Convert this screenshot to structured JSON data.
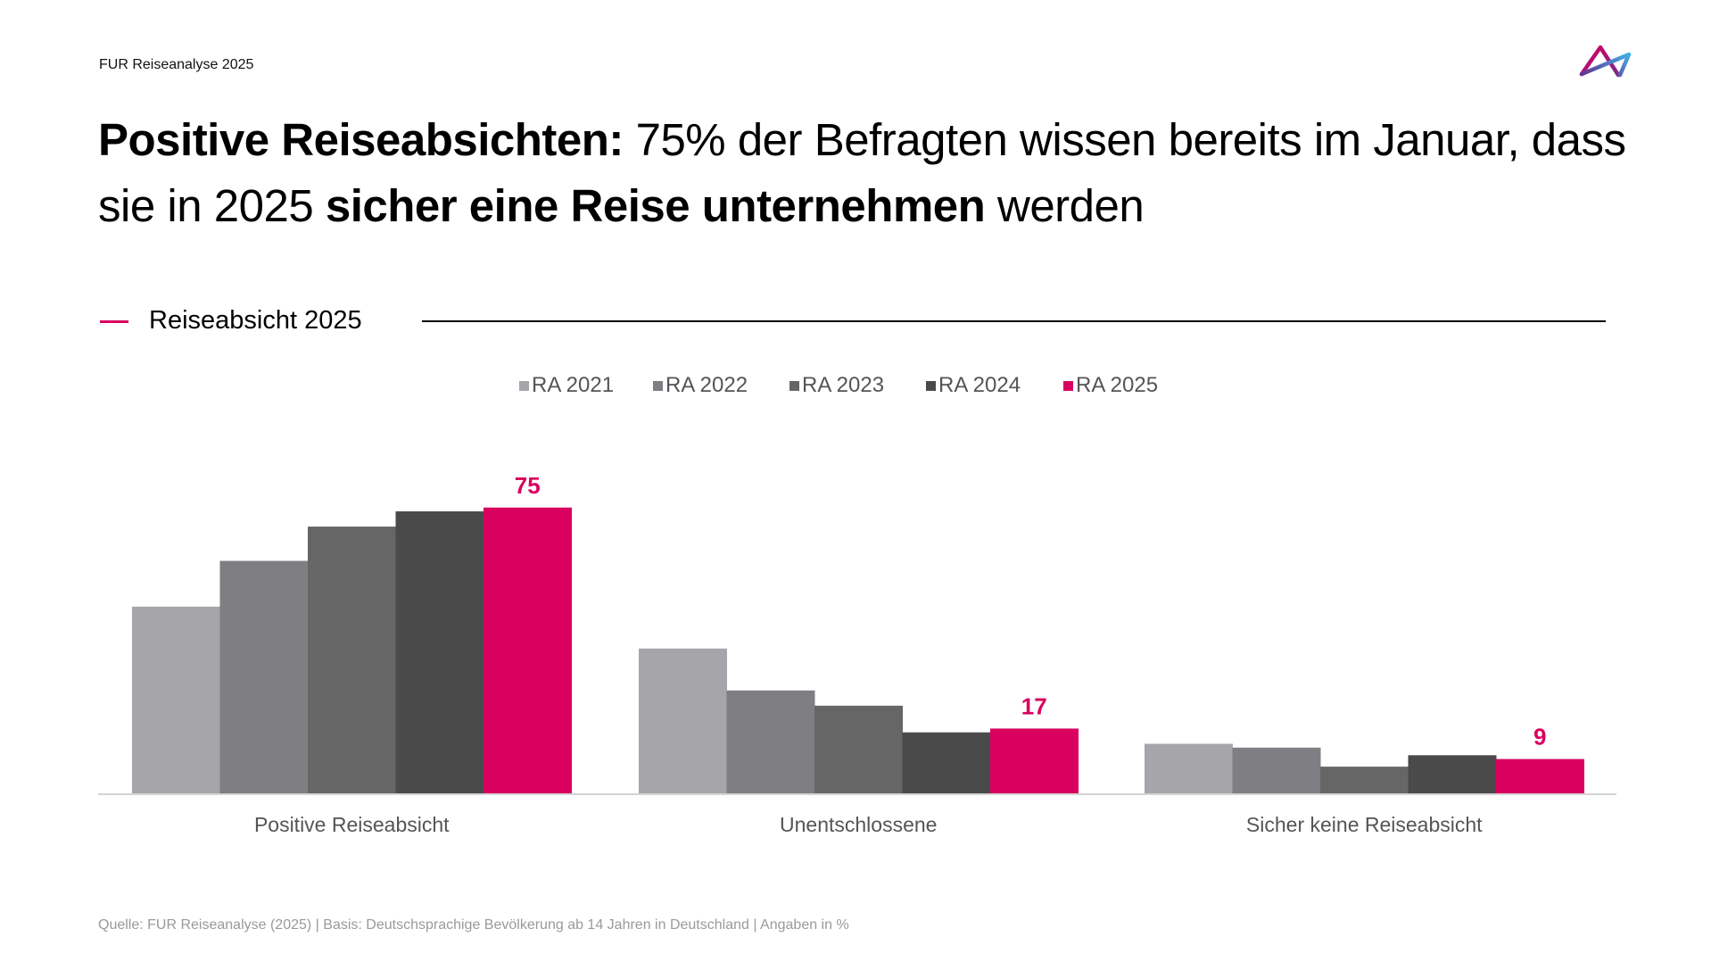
{
  "header": {
    "top_label": "FUR Reiseanalyse 2025",
    "logo": "fur-triangle-logo-icon"
  },
  "headline": {
    "part1_bold": "Positive Reiseabsichten:",
    "part2": " 75% der Befragten wissen bereits im Januar, dass sie in 2025 ",
    "part3_bold": "sicher eine Reise unternehmen",
    "part4": " werden"
  },
  "section": {
    "title": "Reiseabsicht 2025"
  },
  "colors": {
    "accent": "#d9005f",
    "ra2021": "#a6a5aa",
    "ra2022": "#7f7e83",
    "ra2023": "#666666",
    "ra2024": "#4a4a4a",
    "ra2025": "#d9005f"
  },
  "chart_data": {
    "type": "bar",
    "title": "Reiseabsicht 2025",
    "xlabel": "",
    "ylabel": "Angaben in %",
    "ylim": [
      0,
      80
    ],
    "grid": false,
    "legend_position": "top-center",
    "categories": [
      "Positive Reiseabsicht",
      "Unentschlossene",
      "Sicher keine Reiseabsicht"
    ],
    "series": [
      {
        "name": "RA 2021",
        "color": "#a6a5aa",
        "values": [
          49,
          38,
          13
        ]
      },
      {
        "name": "RA 2022",
        "color": "#7f7e83",
        "values": [
          61,
          27,
          12
        ]
      },
      {
        "name": "RA 2023",
        "color": "#666666",
        "values": [
          70,
          23,
          7
        ]
      },
      {
        "name": "RA 2024",
        "color": "#4a4a4a",
        "values": [
          74,
          16,
          10
        ]
      },
      {
        "name": "RA 2025",
        "color": "#d9005f",
        "values": [
          75,
          17,
          9
        ],
        "labels": [
          "75",
          "17",
          "9"
        ]
      }
    ]
  },
  "footer": {
    "source": "Quelle: FUR Reiseanalyse (2025) | Basis: Deutschsprachige Bevölkerung ab 14 Jahren in Deutschland | Angaben in %"
  }
}
